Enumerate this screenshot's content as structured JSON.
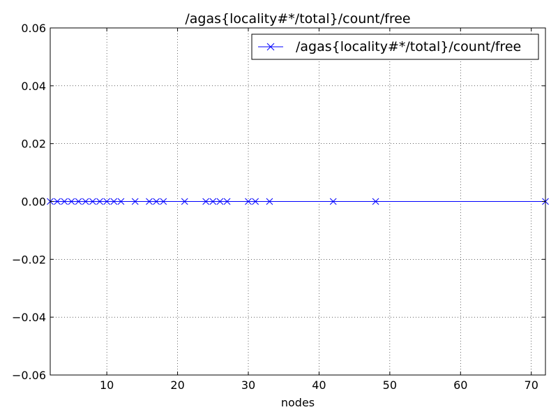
{
  "chart_data": {
    "type": "line",
    "title": "/agas{locality#*/total}/count/free",
    "xlabel": "nodes",
    "ylabel": "",
    "xlim": [
      2,
      72
    ],
    "ylim": [
      -0.06,
      0.06
    ],
    "xticks": [
      10,
      20,
      30,
      40,
      50,
      60,
      70
    ],
    "xtick_labels": [
      "10",
      "20",
      "30",
      "40",
      "50",
      "60",
      "70"
    ],
    "yticks": [
      0.06,
      0.04,
      0.02,
      0.0,
      -0.02,
      -0.04,
      -0.06
    ],
    "ytick_labels": [
      "0.06",
      "0.04",
      "0.02",
      "0.00",
      "−0.02",
      "−0.04",
      "−0.06"
    ],
    "grid": true,
    "legend_position": "top-right",
    "series": [
      {
        "name": "/agas{locality#*/total}/count/free",
        "color": "#0000ff",
        "marker": "x",
        "x": [
          2,
          3,
          4,
          5,
          6,
          7,
          8,
          9,
          10,
          11,
          12,
          14,
          16,
          17,
          18,
          21,
          24,
          25,
          26,
          27,
          30,
          31,
          33,
          42,
          48,
          72
        ],
        "y": [
          0,
          0,
          0,
          0,
          0,
          0,
          0,
          0,
          0,
          0,
          0,
          0,
          0,
          0,
          0,
          0,
          0,
          0,
          0,
          0,
          0,
          0,
          0,
          0,
          0,
          0
        ]
      }
    ]
  }
}
